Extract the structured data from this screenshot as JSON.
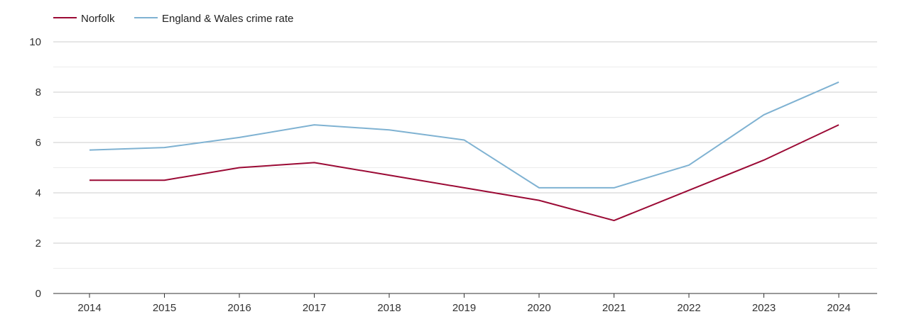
{
  "chart_data": {
    "type": "line",
    "title": "",
    "xlabel": "",
    "ylabel": "",
    "categories": [
      "2014",
      "2015",
      "2016",
      "2017",
      "2018",
      "2019",
      "2020",
      "2021",
      "2022",
      "2023",
      "2024"
    ],
    "ylim": [
      0,
      10
    ],
    "yticks": [
      "0",
      "2",
      "4",
      "6",
      "8",
      "10"
    ],
    "grid": true,
    "legend_position": "top-left",
    "series": [
      {
        "name": "Norfolk",
        "color": "#9b0a35",
        "values": [
          4.5,
          4.5,
          5.0,
          5.2,
          4.7,
          4.2,
          3.7,
          2.9,
          4.1,
          5.3,
          6.7
        ]
      },
      {
        "name": "England & Wales crime rate",
        "color": "#7fb2d2",
        "values": [
          5.7,
          5.8,
          6.2,
          6.7,
          6.5,
          6.1,
          4.2,
          4.2,
          5.1,
          7.1,
          8.4
        ]
      }
    ]
  }
}
